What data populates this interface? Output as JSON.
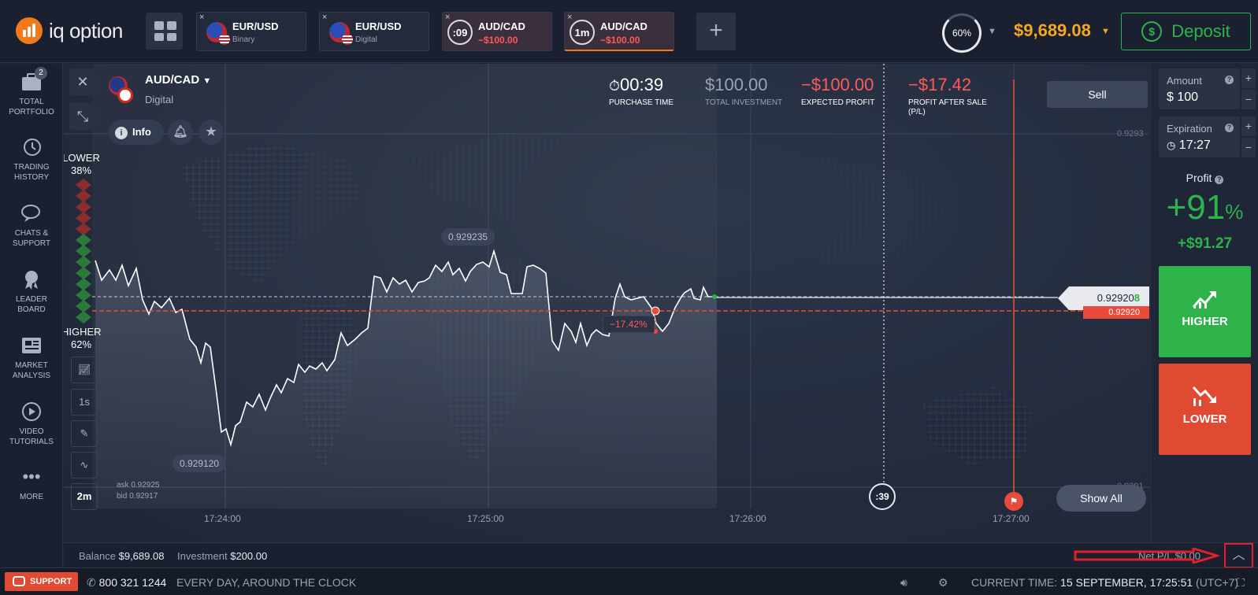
{
  "brand": {
    "name": "iq option"
  },
  "tabs": [
    {
      "title": "EUR/USD",
      "sub": "Binary",
      "close": "×"
    },
    {
      "title": "EUR/USD",
      "sub": "Digital",
      "close": "×"
    },
    {
      "title": "AUD/CAD",
      "sub": "−$100.00",
      "timer": ":09",
      "close": "×"
    },
    {
      "title": "AUD/CAD",
      "sub": "−$100.00",
      "timer": "1m",
      "close": "×"
    }
  ],
  "header": {
    "add": "+",
    "percent": "60%",
    "balance": "$9,689.08",
    "deposit": "Deposit"
  },
  "sidebar": [
    {
      "label1": "TOTAL",
      "label2": "PORTFOLIO",
      "badge": "2",
      "icon": "briefcase-icon"
    },
    {
      "label1": "TRADING",
      "label2": "HISTORY",
      "icon": "history-icon"
    },
    {
      "label1": "CHATS &",
      "label2": "SUPPORT",
      "icon": "chat-icon"
    },
    {
      "label1": "LEADER",
      "label2": "BOARD",
      "icon": "medal-icon"
    },
    {
      "label1": "MARKET",
      "label2": "ANALYSIS",
      "icon": "newspaper-icon"
    },
    {
      "label1": "VIDEO",
      "label2": "TUTORIALS",
      "icon": "play-icon"
    },
    {
      "label1": "MORE",
      "label2": "",
      "icon": "dots-icon"
    }
  ],
  "asset": {
    "name": "AUD/CAD",
    "type": "Digital",
    "info": "Info"
  },
  "sentiment": {
    "lower_label": "LOWER",
    "lower_pct": "38%",
    "higher_label": "HIGHER",
    "higher_pct": "62%"
  },
  "tools": {
    "interval": "1s",
    "timeframe": "2m",
    "ask": "ask 0.92925",
    "bid": "bid 0.92917"
  },
  "stats": {
    "purchase_time": "00:39",
    "purchase_time_label": "PURCHASE TIME",
    "investment": "$100.00",
    "investment_label": "TOTAL INVESTMENT",
    "expected": "−$100.00",
    "expected_label": "EXPECTED PROFIT",
    "after_sale": "−$17.42",
    "after_sale_label1": "PROFIT AFTER SALE",
    "after_sale_label2": "(P/L)"
  },
  "chart_data": {
    "type": "line",
    "x_ticks": [
      "17:24:00",
      "17:25:00",
      "17:26:00",
      "17:27:00"
    ],
    "y_ticks": [
      "0.9293",
      "0.9291"
    ],
    "high_label": "0.929235",
    "low_label": "0.929120",
    "current_price": "0.92920",
    "current_price_last_digit": "8",
    "open_price": "0.92920",
    "pl_label": "−17.42%",
    "timer": ":39"
  },
  "chart_buttons": {
    "sell": "Sell",
    "show_all": "Show All"
  },
  "infobar": {
    "balance_label": "Balance",
    "balance": "$9,689.08",
    "investment_label": "Investment",
    "investment": "$200.00",
    "netpl": "Net P/L $0.00"
  },
  "panel": {
    "amount_label": "Amount",
    "amount": "100",
    "currency": "$",
    "expiration_label": "Expiration",
    "expiration": "17:27",
    "profit_label": "Profit",
    "profit_pct": "+91",
    "pct_sign": "%",
    "profit_amount": "+$91.27",
    "higher": "HIGHER",
    "lower": "LOWER"
  },
  "footer": {
    "support": "SUPPORT",
    "phone": "800 321 1244",
    "hours": "EVERY DAY, AROUND THE CLOCK",
    "time_label": "CURRENT TIME:",
    "time_value": "15 SEPTEMBER, 17:25:51",
    "tz": "(UTC+7)"
  },
  "colors": {
    "accent": "#f27a1a",
    "balance": "#f5a623",
    "green": "#2db34a",
    "red": "#e04a32"
  }
}
